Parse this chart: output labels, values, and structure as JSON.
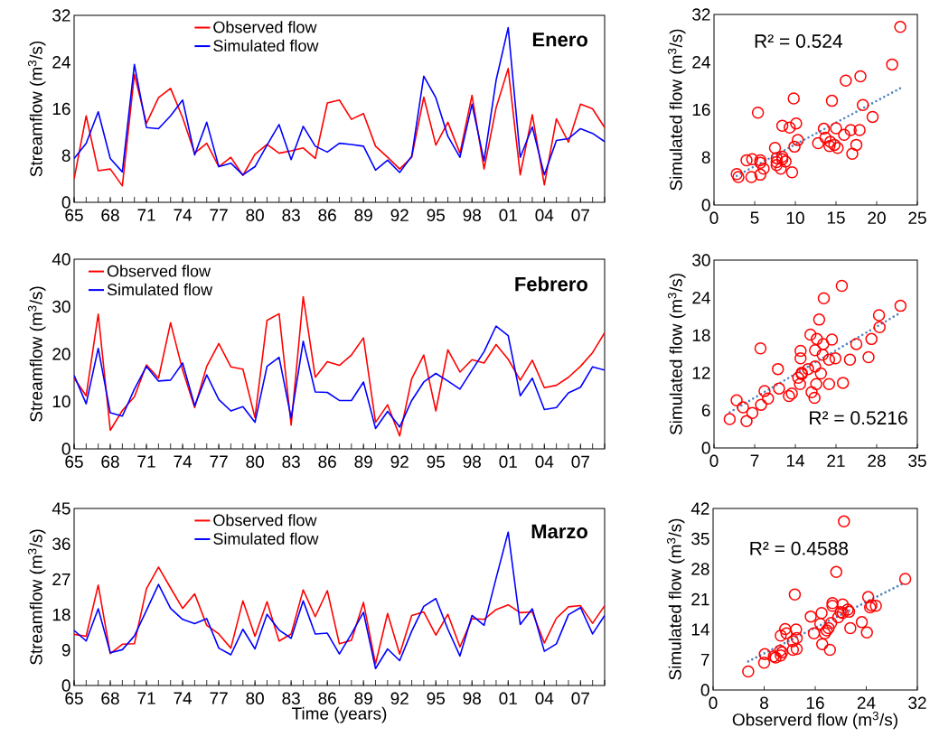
{
  "chart_data": [
    {
      "type": "line",
      "title": "Enero",
      "ylabel": "Streamflow (m$^{3}$/s)",
      "x": [
        1965,
        1966,
        1967,
        1968,
        1969,
        1970,
        1971,
        1972,
        1973,
        1974,
        1975,
        1976,
        1977,
        1978,
        1979,
        1980,
        1981,
        1982,
        1983,
        1984,
        1985,
        1986,
        1987,
        1988,
        1989,
        1990,
        1991,
        1992,
        1993,
        1994,
        1995,
        1996,
        1997,
        1998,
        1999,
        2000,
        2001,
        2002,
        2003,
        2004,
        2005,
        2006,
        2007,
        2008,
        2009
      ],
      "xlim": [
        1965,
        2009
      ],
      "xticks": [
        {
          "value": 1965,
          "label": "65"
        },
        {
          "value": 1968,
          "label": "68"
        },
        {
          "value": 1971,
          "label": "71"
        },
        {
          "value": 1974,
          "label": "74"
        },
        {
          "value": 1977,
          "label": "77"
        },
        {
          "value": 1980,
          "label": "80"
        },
        {
          "value": 1983,
          "label": "83"
        },
        {
          "value": 1986,
          "label": "86"
        },
        {
          "value": 1989,
          "label": "89"
        },
        {
          "value": 1992,
          "label": "92"
        },
        {
          "value": 1995,
          "label": "95"
        },
        {
          "value": 1998,
          "label": "98"
        },
        {
          "value": 2001,
          "label": "01"
        },
        {
          "value": 2004,
          "label": "04"
        },
        {
          "value": 2007,
          "label": "07"
        }
      ],
      "ylim": [
        0,
        32
      ],
      "yticks": [
        0,
        8,
        16,
        24,
        32
      ],
      "legend": "top",
      "marker": "none",
      "line_style": "solid",
      "series": [
        {
          "name": "Observed flow",
          "color": "#ff0000",
          "values": [
            4.0,
            14.8,
            5.4,
            5.7,
            2.8,
            21.9,
            13.5,
            17.9,
            19.5,
            14.5,
            8.4,
            10.1,
            6.1,
            7.7,
            4.6,
            8.2,
            9.9,
            8.4,
            8.8,
            9.3,
            7.5,
            17.0,
            17.5,
            14.2,
            15.2,
            9.6,
            7.7,
            5.7,
            7.7,
            18.0,
            9.8,
            13.7,
            8.4,
            18.3,
            5.7,
            16.2,
            22.9,
            4.7,
            15.0,
            3.0,
            14.3,
            10.3,
            16.8,
            16.0,
            12.8
          ]
        },
        {
          "name": "Simulated flow",
          "color": "#0000ff",
          "values": [
            7.5,
            10.1,
            15.5,
            7.5,
            5.2,
            23.6,
            12.8,
            12.6,
            14.8,
            17.5,
            8.1,
            13.7,
            6.1,
            6.7,
            4.7,
            6.1,
            9.8,
            13.3,
            7.3,
            13.0,
            9.6,
            8.6,
            10.1,
            9.9,
            9.6,
            5.5,
            7.2,
            5.1,
            7.9,
            21.6,
            17.9,
            11.3,
            7.7,
            16.8,
            7.1,
            20.9,
            29.9,
            7.7,
            12.9,
            4.7,
            10.6,
            10.9,
            12.6,
            11.8,
            10.4
          ]
        }
      ]
    },
    {
      "type": "scatter",
      "ylabel": "Simulated flow (m$^{3}$/s)",
      "xlim": [
        0,
        25
      ],
      "xticks": [
        0,
        5,
        10,
        15,
        20,
        25
      ],
      "ylim": [
        0,
        32
      ],
      "yticks": [
        0,
        8,
        16,
        24,
        32
      ],
      "annotations": [
        "R² = 0.524"
      ],
      "series": [
        {
          "color": "#ff0000",
          "marker": "circle",
          "x": [
            4.0,
            14.8,
            5.4,
            5.7,
            2.8,
            21.9,
            13.5,
            17.9,
            19.5,
            14.5,
            8.4,
            10.1,
            6.1,
            7.7,
            4.6,
            8.2,
            9.9,
            8.4,
            8.8,
            9.3,
            7.5,
            17.0,
            17.5,
            14.2,
            15.2,
            9.6,
            7.7,
            5.7,
            7.7,
            18.0,
            9.8,
            13.7,
            8.4,
            18.3,
            5.7,
            16.2,
            22.9,
            4.7,
            15.0,
            3.0,
            14.3,
            10.3,
            16.8,
            16.0,
            12.8
          ],
          "values": [
            7.5,
            10.1,
            15.5,
            7.5,
            5.2,
            23.6,
            12.8,
            12.6,
            14.8,
            17.5,
            8.1,
            13.7,
            6.1,
            6.7,
            4.7,
            6.1,
            9.8,
            13.3,
            7.3,
            13.0,
            9.6,
            8.6,
            10.1,
            9.9,
            9.6,
            5.5,
            7.2,
            5.1,
            7.9,
            21.6,
            17.9,
            11.3,
            7.7,
            16.8,
            7.1,
            20.9,
            29.9,
            7.7,
            12.9,
            4.7,
            10.6,
            10.9,
            12.6,
            11.8,
            10.4
          ]
        },
        {
          "type": "line",
          "color": "#4f81bd",
          "line_style": "dotted",
          "x": [
            2.8,
            22.9
          ],
          "values": [
            4.9,
            19.6
          ]
        }
      ]
    },
    {
      "type": "line",
      "title": "Febrero",
      "ylabel": "Streamflow (m$^{3}$/s)",
      "x": [
        1965,
        1966,
        1967,
        1968,
        1969,
        1970,
        1971,
        1972,
        1973,
        1974,
        1975,
        1976,
        1977,
        1978,
        1979,
        1980,
        1981,
        1982,
        1983,
        1984,
        1985,
        1986,
        1987,
        1988,
        1989,
        1990,
        1991,
        1992,
        1993,
        1994,
        1995,
        1996,
        1997,
        1998,
        1999,
        2000,
        2001,
        2002,
        2003,
        2004,
        2005,
        2006,
        2007,
        2008,
        2009
      ],
      "xlim": [
        1965,
        2009
      ],
      "xticks": [
        {
          "value": 1965,
          "label": "65"
        },
        {
          "value": 1968,
          "label": "68"
        },
        {
          "value": 1971,
          "label": "71"
        },
        {
          "value": 1974,
          "label": "74"
        },
        {
          "value": 1977,
          "label": "77"
        },
        {
          "value": 1980,
          "label": "80"
        },
        {
          "value": 1983,
          "label": "83"
        },
        {
          "value": 1986,
          "label": "86"
        },
        {
          "value": 1989,
          "label": "89"
        },
        {
          "value": 1992,
          "label": "92"
        },
        {
          "value": 1995,
          "label": "95"
        },
        {
          "value": 1998,
          "label": "98"
        },
        {
          "value": 2001,
          "label": "01"
        },
        {
          "value": 2004,
          "label": "04"
        },
        {
          "value": 2007,
          "label": "07"
        }
      ],
      "ylim": [
        0,
        40
      ],
      "yticks": [
        0,
        10,
        20,
        30,
        40
      ],
      "legend": "top left",
      "marker": "none",
      "line_style": "solid",
      "series": [
        {
          "name": "Observed flow",
          "color": "#ff0000",
          "values": [
            14.9,
            11.2,
            28.4,
            3.9,
            8.1,
            11.0,
            17.7,
            14.9,
            26.6,
            16.6,
            8.7,
            17.4,
            22.2,
            17.3,
            16.8,
            6.6,
            27.1,
            28.5,
            5.0,
            32.1,
            15.1,
            18.4,
            17.6,
            19.8,
            23.4,
            5.6,
            9.3,
            2.7,
            14.8,
            19.8,
            8.0,
            20.9,
            16.2,
            18.8,
            18.1,
            22.0,
            18.9,
            14.5,
            18.7,
            12.9,
            13.4,
            15.1,
            17.4,
            20.3,
            24.5
          ]
        },
        {
          "name": "Simulated flow",
          "color": "#0000ff",
          "values": [
            15.5,
            9.5,
            21.2,
            7.6,
            6.9,
            12.6,
            17.4,
            14.3,
            14.5,
            18.1,
            9.1,
            15.6,
            10.4,
            8.0,
            8.9,
            5.6,
            17.4,
            19.3,
            6.5,
            22.7,
            12.0,
            11.9,
            10.2,
            10.2,
            14.1,
            4.3,
            7.9,
            4.6,
            10.2,
            14.1,
            15.9,
            14.3,
            12.6,
            16.6,
            20.5,
            25.9,
            23.9,
            11.2,
            14.9,
            8.3,
            8.7,
            11.8,
            13.0,
            17.3,
            16.6
          ]
        }
      ]
    },
    {
      "type": "scatter",
      "ylabel": "Simulated flow (m$^{3}$/s)",
      "xlim": [
        0,
        35
      ],
      "xticks": [
        0,
        7,
        14,
        21,
        28,
        35
      ],
      "ylim": [
        0,
        30
      ],
      "yticks": [
        0,
        6,
        12,
        18,
        24,
        30
      ],
      "annotations": [
        "R² = 0.5216"
      ],
      "series": [
        {
          "color": "#ff0000",
          "marker": "circle",
          "x": [
            14.9,
            11.2,
            28.4,
            3.9,
            8.1,
            11.0,
            17.7,
            14.9,
            26.6,
            16.6,
            8.7,
            17.4,
            22.2,
            17.3,
            16.8,
            6.6,
            27.1,
            28.5,
            5.0,
            32.1,
            15.1,
            18.4,
            17.6,
            19.8,
            23.4,
            5.6,
            9.3,
            2.7,
            14.8,
            19.8,
            8.0,
            20.9,
            16.2,
            18.8,
            18.1,
            22.0,
            18.9,
            14.5,
            18.7,
            12.9,
            13.4,
            15.1,
            17.4,
            20.3,
            24.5
          ],
          "values": [
            15.5,
            9.5,
            21.2,
            7.6,
            6.9,
            12.6,
            17.4,
            14.3,
            14.5,
            18.1,
            9.1,
            15.6,
            10.4,
            8.0,
            8.9,
            5.6,
            17.4,
            19.3,
            6.5,
            22.7,
            12.0,
            11.9,
            10.2,
            10.2,
            14.1,
            4.3,
            7.9,
            4.6,
            10.2,
            14.1,
            15.9,
            14.3,
            12.6,
            16.6,
            20.5,
            25.9,
            23.9,
            11.2,
            14.9,
            8.3,
            8.7,
            11.8,
            13.0,
            17.3,
            16.6
          ]
        },
        {
          "type": "line",
          "color": "#4f81bd",
          "line_style": "dotted",
          "x": [
            2.7,
            32.1
          ],
          "values": [
            5.7,
            21.6
          ]
        }
      ]
    },
    {
      "type": "line",
      "title": "Marzo",
      "xlabel": "Time (years)",
      "ylabel": "Streamflow (m$^{3}$/s)",
      "x": [
        1965,
        1966,
        1967,
        1968,
        1969,
        1970,
        1971,
        1972,
        1973,
        1974,
        1975,
        1976,
        1977,
        1978,
        1979,
        1980,
        1981,
        1982,
        1983,
        1984,
        1985,
        1986,
        1987,
        1988,
        1989,
        1990,
        1991,
        1992,
        1993,
        1994,
        1995,
        1996,
        1997,
        1998,
        1999,
        2000,
        2001,
        2002,
        2003,
        2004,
        2005,
        2006,
        2007,
        2008,
        2009
      ],
      "xlim": [
        1965,
        2009
      ],
      "xticks": [
        {
          "value": 1965,
          "label": "65"
        },
        {
          "value": 1968,
          "label": "68"
        },
        {
          "value": 1971,
          "label": "71"
        },
        {
          "value": 1974,
          "label": "74"
        },
        {
          "value": 1977,
          "label": "77"
        },
        {
          "value": 1980,
          "label": "80"
        },
        {
          "value": 1983,
          "label": "83"
        },
        {
          "value": 1986,
          "label": "86"
        },
        {
          "value": 1989,
          "label": "89"
        },
        {
          "value": 1992,
          "label": "92"
        },
        {
          "value": 1995,
          "label": "95"
        },
        {
          "value": 1998,
          "label": "98"
        },
        {
          "value": 2001,
          "label": "01"
        },
        {
          "value": 2004,
          "label": "04"
        },
        {
          "value": 2007,
          "label": "07"
        }
      ],
      "ylim": [
        0,
        45
      ],
      "yticks": [
        0,
        9,
        18,
        27,
        36,
        45
      ],
      "legend": "top",
      "marker": "none",
      "line_style": "solid",
      "series": [
        {
          "name": "Observed flow",
          "color": "#ff0000",
          "values": [
            13.0,
            12.5,
            25.5,
            8.1,
            10.5,
            10.6,
            24.6,
            30.1,
            24.8,
            19.6,
            23.3,
            15.3,
            13.1,
            9.5,
            21.5,
            12.5,
            21.3,
            11.3,
            13.1,
            24.3,
            17.5,
            24.1,
            10.6,
            11.5,
            21.1,
            5.5,
            18.3,
            8.0,
            17.8,
            18.7,
            12.8,
            18.1,
            9.8,
            17.0,
            16.8,
            19.3,
            20.5,
            18.5,
            18.7,
            10.8,
            17.1,
            20.0,
            20.3,
            15.8,
            20.3
          ]
        },
        {
          "name": "Simulated flow",
          "color": "#0000ff",
          "values": [
            14.0,
            11.3,
            19.5,
            8.3,
            9.1,
            12.6,
            19.1,
            25.7,
            19.6,
            16.8,
            15.7,
            17.0,
            9.5,
            7.8,
            14.3,
            9.3,
            18.1,
            14.1,
            12.0,
            21.5,
            13.1,
            13.3,
            8.0,
            13.1,
            18.6,
            4.3,
            9.3,
            6.3,
            13.8,
            20.1,
            22.1,
            14.3,
            7.5,
            17.8,
            15.3,
            27.3,
            39.0,
            15.5,
            19.5,
            8.7,
            10.6,
            18.0,
            19.8,
            13.1,
            17.8
          ]
        }
      ]
    },
    {
      "type": "scatter",
      "xlabel": "Observerd flow (m$^{3}$/s)",
      "ylabel": "Simulated flow (m$^{3}$/s)",
      "xlim": [
        0,
        32
      ],
      "xticks": [
        0,
        8,
        16,
        24,
        32
      ],
      "ylim": [
        0,
        42
      ],
      "yticks": [
        0,
        7,
        14,
        21,
        28,
        35,
        42
      ],
      "annotations": [
        "R² = 0.4588"
      ],
      "series": [
        {
          "color": "#ff0000",
          "marker": "circle",
          "x": [
            13.0,
            12.5,
            25.5,
            8.1,
            10.5,
            10.6,
            24.6,
            30.1,
            24.8,
            19.6,
            23.3,
            15.3,
            13.1,
            9.5,
            21.5,
            12.5,
            21.3,
            11.3,
            13.1,
            24.3,
            17.5,
            24.1,
            10.6,
            11.5,
            21.1,
            5.5,
            18.3,
            8.0,
            17.8,
            18.7,
            12.8,
            18.1,
            9.8,
            17.0,
            16.8,
            19.3,
            20.5,
            18.5,
            18.7,
            10.8,
            17.1,
            20.0,
            20.3,
            15.8,
            20.3
          ],
          "values": [
            14.0,
            11.3,
            19.5,
            8.3,
            9.1,
            12.6,
            19.1,
            25.7,
            19.6,
            16.8,
            15.7,
            17.0,
            9.5,
            7.8,
            14.3,
            9.3,
            18.1,
            14.1,
            12.0,
            21.5,
            13.1,
            13.3,
            8.0,
            13.1,
            18.6,
            4.3,
            9.3,
            6.3,
            13.8,
            20.1,
            22.1,
            14.3,
            7.5,
            17.8,
            15.3,
            27.3,
            39.0,
            15.5,
            19.5,
            8.7,
            10.6,
            18.0,
            19.8,
            13.1,
            17.8
          ]
        },
        {
          "type": "line",
          "color": "#4f81bd",
          "line_style": "dotted",
          "x": [
            5.5,
            30.1
          ],
          "values": [
            6.6,
            24.9
          ]
        }
      ]
    }
  ]
}
